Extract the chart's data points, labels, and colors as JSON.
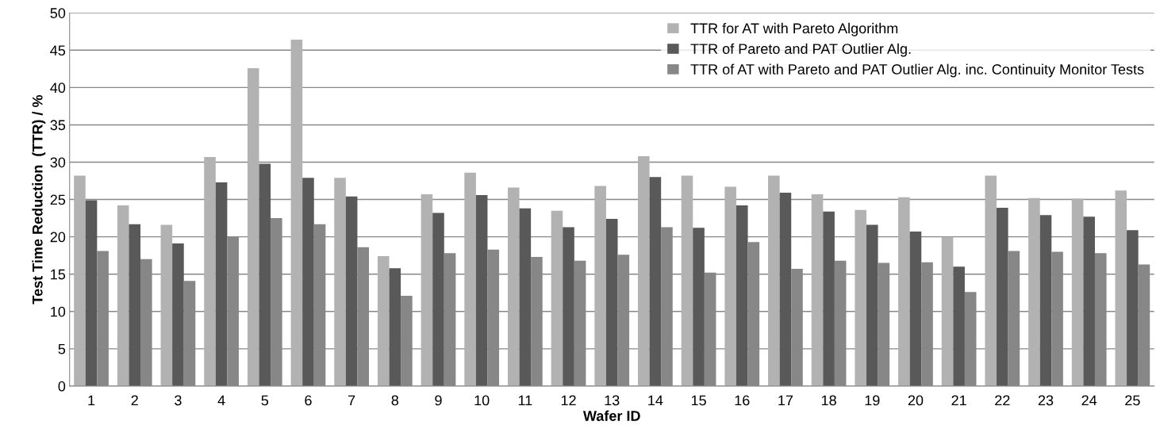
{
  "chart_data": {
    "type": "bar",
    "xlabel": "Wafer ID",
    "ylabel": "Test Time Reduction  (TTR) / %",
    "categories": [
      "1",
      "2",
      "3",
      "4",
      "5",
      "6",
      "7",
      "8",
      "9",
      "10",
      "11",
      "12",
      "13",
      "14",
      "15",
      "16",
      "17",
      "18",
      "19",
      "20",
      "21",
      "22",
      "23",
      "24",
      "25"
    ],
    "series": [
      {
        "name": "TTR for AT with Pareto Algorithm",
        "color": "#b2b2b2",
        "values": [
          28.2,
          24.2,
          21.6,
          30.7,
          42.6,
          46.4,
          27.9,
          17.4,
          25.7,
          28.6,
          26.6,
          23.5,
          26.8,
          30.8,
          28.2,
          26.7,
          28.2,
          25.7,
          23.6,
          25.3,
          20.0,
          28.2,
          25.2,
          25.1,
          26.2
        ]
      },
      {
        "name": "TTR of Pareto and PAT Outlier Alg.",
        "color": "#595959",
        "values": [
          24.9,
          21.7,
          19.1,
          27.3,
          29.8,
          27.9,
          25.4,
          15.8,
          23.2,
          25.6,
          23.8,
          21.3,
          22.4,
          28.0,
          21.2,
          24.2,
          25.9,
          23.4,
          21.6,
          20.7,
          16.0,
          23.9,
          22.9,
          22.7,
          20.9
        ]
      },
      {
        "name": "TTR of AT with Pareto and PAT Outlier Alg. inc. Continuity Monitor Tests",
        "color": "#878787",
        "values": [
          18.1,
          17.0,
          14.1,
          20.0,
          22.5,
          21.7,
          18.6,
          12.1,
          17.8,
          18.3,
          17.3,
          16.8,
          17.6,
          21.3,
          15.2,
          19.3,
          15.7,
          16.8,
          16.5,
          16.6,
          12.6,
          18.1,
          18.0,
          17.8,
          16.3
        ]
      }
    ],
    "ylim": [
      0,
      50
    ],
    "yticks": [
      0,
      5,
      10,
      15,
      20,
      25,
      30,
      35,
      40,
      45,
      50
    ],
    "grid": "y",
    "legend": "top right"
  }
}
